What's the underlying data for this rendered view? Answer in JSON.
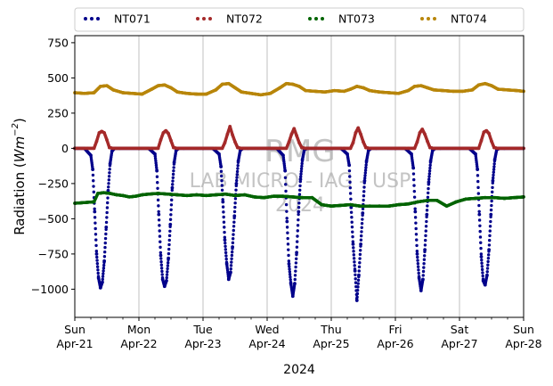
{
  "chart_data": {
    "type": "scatter",
    "title": "",
    "xlabel": "2024",
    "ylabel_prefix": "Radiation (",
    "ylabel_unit_main": "Wm",
    "ylabel_unit_exp": "−2",
    "ylabel_suffix": ")",
    "ylim": [
      -1200,
      800
    ],
    "xlim": [
      0,
      7
    ],
    "y_ticks": [
      750,
      500,
      250,
      0,
      -250,
      -500,
      -750,
      -1000
    ],
    "y_tick_labels": [
      "750",
      "500",
      "250",
      "0",
      "−250",
      "−500",
      "−750",
      "−1000"
    ],
    "x_ticks": [
      0,
      1,
      2,
      3,
      4,
      5,
      6,
      7
    ],
    "x_tick_labels": [
      [
        "Sun",
        "Apr-21"
      ],
      [
        "Mon",
        "Apr-22"
      ],
      [
        "Tue",
        "Apr-23"
      ],
      [
        "Wed",
        "Apr-24"
      ],
      [
        "Thu",
        "Apr-25"
      ],
      [
        "Fri",
        "Apr-26"
      ],
      [
        "Sat",
        "Apr-27"
      ],
      [
        "Sun",
        "Apr-28"
      ]
    ],
    "grid": "vertical",
    "legend_placement": "top",
    "watermark": [
      "RMG",
      "LAB MICRO - IAG - USP",
      "2024"
    ],
    "series": [
      {
        "name": "NT071",
        "color": "#00008b",
        "x": [
          0.0,
          0.15,
          0.25,
          0.28,
          0.31,
          0.34,
          0.37,
          0.4,
          0.43,
          0.46,
          0.49,
          0.52,
          0.55,
          0.58,
          0.62,
          0.7,
          1.0,
          1.15,
          1.25,
          1.28,
          1.31,
          1.34,
          1.37,
          1.4,
          1.43,
          1.46,
          1.49,
          1.52,
          1.55,
          1.58,
          1.62,
          1.7,
          2.0,
          2.15,
          2.25,
          2.28,
          2.31,
          2.34,
          2.37,
          2.4,
          2.43,
          2.46,
          2.49,
          2.52,
          2.55,
          2.58,
          2.62,
          2.7,
          3.0,
          3.15,
          3.25,
          3.28,
          3.31,
          3.34,
          3.37,
          3.4,
          3.43,
          3.46,
          3.49,
          3.52,
          3.55,
          3.58,
          3.62,
          3.7,
          4.0,
          4.15,
          4.25,
          4.28,
          4.31,
          4.34,
          4.37,
          4.4,
          4.43,
          4.46,
          4.49,
          4.52,
          4.55,
          4.58,
          4.62,
          4.7,
          5.0,
          5.15,
          5.25,
          5.28,
          5.31,
          5.34,
          5.37,
          5.4,
          5.43,
          5.46,
          5.49,
          5.52,
          5.55,
          5.58,
          5.62,
          5.7,
          6.0,
          6.15,
          6.25,
          6.28,
          6.31,
          6.34,
          6.37,
          6.4,
          6.43,
          6.46,
          6.49,
          6.52,
          6.55,
          6.58,
          6.62,
          6.7,
          7.0
        ],
        "y": [
          0,
          0,
          -50,
          -150,
          -450,
          -750,
          -920,
          -990,
          -950,
          -800,
          -560,
          -300,
          -110,
          -20,
          0,
          0,
          0,
          0,
          -40,
          -160,
          -470,
          -760,
          -930,
          -980,
          -940,
          -780,
          -540,
          -280,
          -100,
          -15,
          0,
          0,
          0,
          0,
          -40,
          -130,
          -380,
          -650,
          -820,
          -930,
          -880,
          -700,
          -480,
          -250,
          -90,
          -15,
          0,
          0,
          0,
          0,
          -50,
          -160,
          -520,
          -820,
          -960,
          -1050,
          -960,
          -740,
          -450,
          -220,
          -80,
          -10,
          0,
          0,
          0,
          0,
          -40,
          -120,
          -420,
          -680,
          -870,
          -1080,
          -900,
          -680,
          -460,
          -230,
          -90,
          -15,
          0,
          0,
          0,
          0,
          -40,
          -140,
          -450,
          -750,
          -920,
          -1010,
          -930,
          -720,
          -470,
          -240,
          -90,
          -15,
          0,
          0,
          0,
          0,
          -40,
          -150,
          -470,
          -770,
          -940,
          -970,
          -900,
          -720,
          -470,
          -230,
          -80,
          -10,
          0,
          0,
          0
        ]
      },
      {
        "name": "NT072",
        "color": "#a52a2a",
        "x": [
          0.0,
          0.2,
          0.3,
          0.34,
          0.38,
          0.42,
          0.46,
          0.5,
          0.54,
          0.6,
          1.0,
          1.2,
          1.3,
          1.34,
          1.38,
          1.42,
          1.46,
          1.5,
          1.54,
          1.6,
          2.0,
          2.2,
          2.3,
          2.34,
          2.38,
          2.42,
          2.46,
          2.5,
          2.54,
          2.6,
          3.0,
          3.2,
          3.3,
          3.34,
          3.38,
          3.42,
          3.46,
          3.5,
          3.54,
          3.6,
          4.0,
          4.2,
          4.3,
          4.34,
          4.38,
          4.42,
          4.46,
          4.5,
          4.54,
          4.6,
          5.0,
          5.2,
          5.3,
          5.34,
          5.38,
          5.42,
          5.46,
          5.5,
          5.54,
          5.6,
          6.0,
          6.2,
          6.3,
          6.34,
          6.38,
          6.42,
          6.46,
          6.5,
          6.54,
          6.6,
          7.0
        ],
        "y": [
          0,
          0,
          0,
          50,
          110,
          120,
          110,
          60,
          5,
          0,
          0,
          0,
          0,
          60,
          110,
          125,
          105,
          55,
          5,
          0,
          0,
          0,
          0,
          40,
          100,
          155,
          95,
          45,
          5,
          0,
          0,
          0,
          0,
          45,
          100,
          140,
          90,
          40,
          5,
          0,
          0,
          0,
          0,
          40,
          110,
          145,
          100,
          45,
          5,
          0,
          0,
          0,
          0,
          45,
          110,
          135,
          100,
          50,
          5,
          0,
          0,
          0,
          0,
          55,
          115,
          125,
          105,
          50,
          5,
          0,
          0
        ]
      },
      {
        "name": "NT073",
        "color": "#006400",
        "x": [
          0.0,
          0.3,
          0.36,
          0.45,
          0.55,
          0.65,
          0.75,
          0.85,
          0.95,
          1.05,
          1.15,
          1.3,
          1.45,
          1.6,
          1.75,
          1.9,
          2.05,
          2.2,
          2.35,
          2.5,
          2.65,
          2.8,
          2.95,
          3.1,
          3.25,
          3.4,
          3.55,
          3.7,
          3.85,
          4.0,
          4.15,
          4.3,
          4.45,
          4.6,
          4.75,
          4.9,
          5.05,
          5.2,
          5.35,
          5.5,
          5.65,
          5.8,
          5.95,
          6.1,
          6.25,
          6.4,
          6.55,
          6.7,
          6.85,
          7.0
        ],
        "y": [
          -390,
          -380,
          -320,
          -315,
          -320,
          -330,
          -335,
          -345,
          -340,
          -330,
          -325,
          -320,
          -325,
          -330,
          -335,
          -330,
          -335,
          -330,
          -325,
          -335,
          -330,
          -345,
          -350,
          -340,
          -340,
          -345,
          -350,
          -350,
          -400,
          -410,
          -405,
          -400,
          -410,
          -410,
          -410,
          -410,
          -400,
          -395,
          -380,
          -370,
          -370,
          -410,
          -380,
          -360,
          -355,
          -350,
          -350,
          -355,
          -350,
          -345
        ]
      },
      {
        "name": "NT074",
        "color": "#b8860b",
        "x": [
          0.0,
          0.15,
          0.3,
          0.4,
          0.5,
          0.6,
          0.75,
          0.9,
          1.05,
          1.2,
          1.3,
          1.4,
          1.5,
          1.6,
          1.75,
          1.9,
          2.05,
          2.2,
          2.3,
          2.4,
          2.5,
          2.6,
          2.75,
          2.9,
          3.05,
          3.2,
          3.3,
          3.4,
          3.5,
          3.6,
          3.75,
          3.9,
          4.05,
          4.2,
          4.3,
          4.4,
          4.5,
          4.6,
          4.75,
          4.9,
          5.05,
          5.2,
          5.3,
          5.4,
          5.5,
          5.6,
          5.75,
          5.9,
          6.05,
          6.2,
          6.3,
          6.4,
          6.5,
          6.6,
          6.75,
          6.9,
          7.0
        ],
        "y": [
          395,
          390,
          395,
          440,
          445,
          415,
          395,
          390,
          385,
          420,
          445,
          450,
          430,
          400,
          390,
          385,
          385,
          415,
          455,
          460,
          430,
          400,
          390,
          380,
          390,
          430,
          460,
          455,
          440,
          410,
          405,
          400,
          410,
          405,
          420,
          440,
          430,
          410,
          400,
          395,
          390,
          410,
          440,
          445,
          430,
          415,
          410,
          405,
          405,
          415,
          450,
          460,
          445,
          420,
          415,
          410,
          405
        ]
      }
    ]
  }
}
